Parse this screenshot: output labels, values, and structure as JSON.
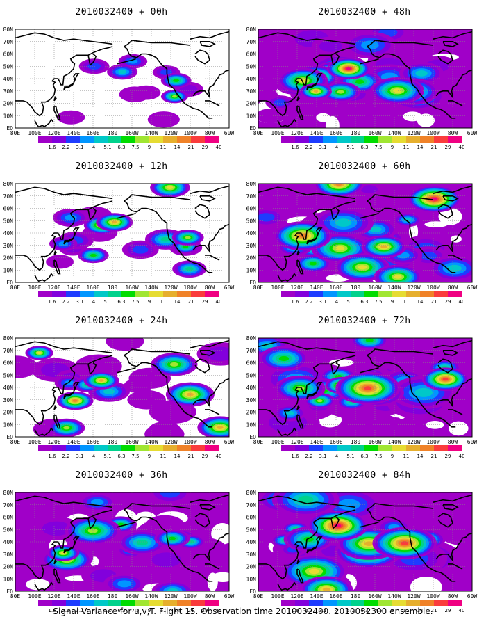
{
  "panels": [
    {
      "id": "p00",
      "title": "2010032400 + 00h",
      "coverage": 0.12,
      "intensity": 0.55
    },
    {
      "id": "p48",
      "title": "2010032400 + 48h",
      "coverage": 0.72,
      "intensity": 0.55
    },
    {
      "id": "p12",
      "title": "2010032400 + 12h",
      "coverage": 0.3,
      "intensity": 0.45
    },
    {
      "id": "p60",
      "title": "2010032400 + 60h",
      "coverage": 0.8,
      "intensity": 0.6
    },
    {
      "id": "p24",
      "title": "2010032400 + 24h",
      "coverage": 0.45,
      "intensity": 0.5
    },
    {
      "id": "p72",
      "title": "2010032400 + 72h",
      "coverage": 0.85,
      "intensity": 0.65
    },
    {
      "id": "p36",
      "title": "2010032400 + 36h",
      "coverage": 0.62,
      "intensity": 0.5
    },
    {
      "id": "p84",
      "title": "2010032400 + 84h",
      "coverage": 0.92,
      "intensity": 0.72
    }
  ],
  "map": {
    "lon_labels": [
      "80E",
      "100E",
      "120E",
      "140E",
      "160E",
      "180",
      "160W",
      "140W",
      "120W",
      "100W",
      "80W",
      "60W"
    ],
    "lat_labels": [
      "EQ",
      "10N",
      "20N",
      "30N",
      "40N",
      "50N",
      "60N",
      "70N",
      "80N"
    ],
    "lon_range": [
      80,
      300
    ],
    "lat_range": [
      0,
      80
    ]
  },
  "legend": {
    "labels": [
      "1.6",
      "2.2",
      "3.1",
      "4",
      "5.1",
      "6.3",
      "7.5",
      "9",
      "11",
      "14",
      "21",
      "29",
      "40"
    ],
    "colors": [
      "#a000c8",
      "#8200dc",
      "#1e3cff",
      "#0096ff",
      "#00c8c8",
      "#00d28c",
      "#00dc00",
      "#a0e632",
      "#e6dc32",
      "#e6af2d",
      "#f08228",
      "#fa3c3c",
      "#f00082"
    ]
  },
  "caption": "Signal Variance for u,v,T. Flight 15. Observation time 2010032400. 2010032300 ensemble."
}
